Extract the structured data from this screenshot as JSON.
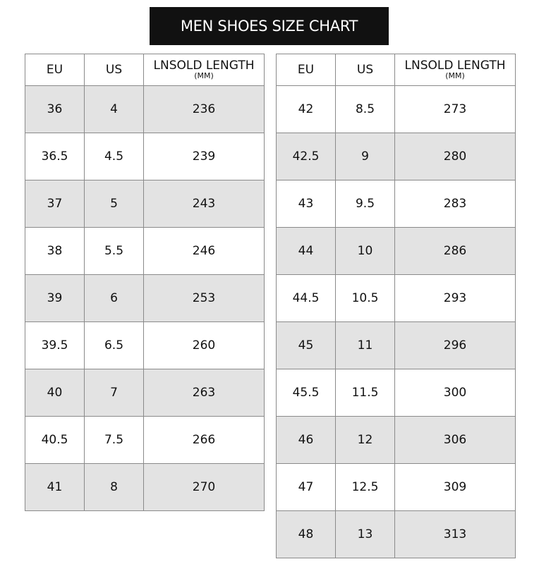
{
  "title": "MEN SHOES SIZE CHART",
  "headers": {
    "eu": "EU",
    "us": "US",
    "length": "LNSOLD LENGTH",
    "unit": "(MM)"
  },
  "colors": {
    "title_bg": "#111111",
    "stripe": "#e3e3e3",
    "border": "#8a8a8a"
  },
  "left_table": [
    {
      "eu": "36",
      "us": "4",
      "length": "236"
    },
    {
      "eu": "36.5",
      "us": "4.5",
      "length": "239"
    },
    {
      "eu": "37",
      "us": "5",
      "length": "243"
    },
    {
      "eu": "38",
      "us": "5.5",
      "length": "246"
    },
    {
      "eu": "39",
      "us": "6",
      "length": "253"
    },
    {
      "eu": "39.5",
      "us": "6.5",
      "length": "260"
    },
    {
      "eu": "40",
      "us": "7",
      "length": "263"
    },
    {
      "eu": "40.5",
      "us": "7.5",
      "length": "266"
    },
    {
      "eu": "41",
      "us": "8",
      "length": "270"
    }
  ],
  "right_table": [
    {
      "eu": "42",
      "us": "8.5",
      "length": "273"
    },
    {
      "eu": "42.5",
      "us": "9",
      "length": "280"
    },
    {
      "eu": "43",
      "us": "9.5",
      "length": "283"
    },
    {
      "eu": "44",
      "us": "10",
      "length": "286"
    },
    {
      "eu": "44.5",
      "us": "10.5",
      "length": "293"
    },
    {
      "eu": "45",
      "us": "11",
      "length": "296"
    },
    {
      "eu": "45.5",
      "us": "11.5",
      "length": "300"
    },
    {
      "eu": "46",
      "us": "12",
      "length": "306"
    },
    {
      "eu": "47",
      "us": "12.5",
      "length": "309"
    },
    {
      "eu": "48",
      "us": "13",
      "length": "313"
    }
  ]
}
